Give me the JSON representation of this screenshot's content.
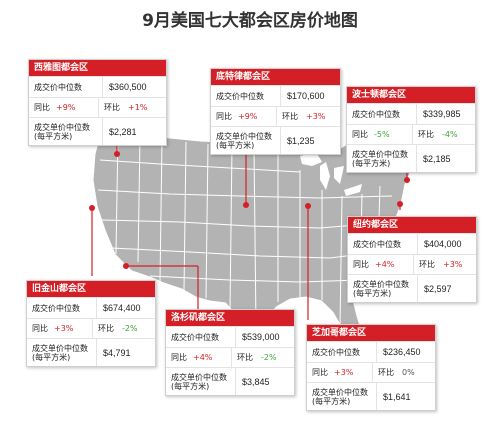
{
  "title": "9月美国七大都会区房价地图",
  "labels": {
    "median_price": "成交价中位数",
    "yoy": "同比",
    "mom": "环比",
    "unit_price": "成交单价中位数\n(每平方米)"
  },
  "colors": {
    "accent": "#d51f26",
    "up": "#d51f26",
    "down": "#3aa63a",
    "map_fill": "#b3b3b3",
    "map_line": "#ffffff"
  },
  "regions": {
    "seattle": {
      "name": "西雅图都会区",
      "median_price": "$360,500",
      "yoy": "+9%",
      "mom": "+1%",
      "unit_price": "$2,281"
    },
    "detroit": {
      "name": "底特律都会区",
      "median_price": "$170,600",
      "yoy": "+9%",
      "mom": "+3%",
      "unit_price": "$1,235"
    },
    "boston": {
      "name": "波士顿都会区",
      "median_price": "$339,985",
      "yoy": "-5%",
      "mom": "-4%",
      "unit_price": "$2,185"
    },
    "new_york": {
      "name": "纽约都会区",
      "median_price": "$404,000",
      "yoy": "+4%",
      "mom": "+3%",
      "unit_price": "$2,597"
    },
    "san_francisco": {
      "name": "旧金山都会区",
      "median_price": "$674,400",
      "yoy": "+3%",
      "mom": "-2%",
      "unit_price": "$4,791"
    },
    "los_angeles": {
      "name": "洛杉矶都会区",
      "median_price": "$539,000",
      "yoy": "+4%",
      "mom": "-2%",
      "unit_price": "$3,845"
    },
    "chicago": {
      "name": "芝加哥都会区",
      "median_price": "$236,450",
      "yoy": "+3%",
      "mom": "0%",
      "unit_price": "$1,641"
    }
  }
}
